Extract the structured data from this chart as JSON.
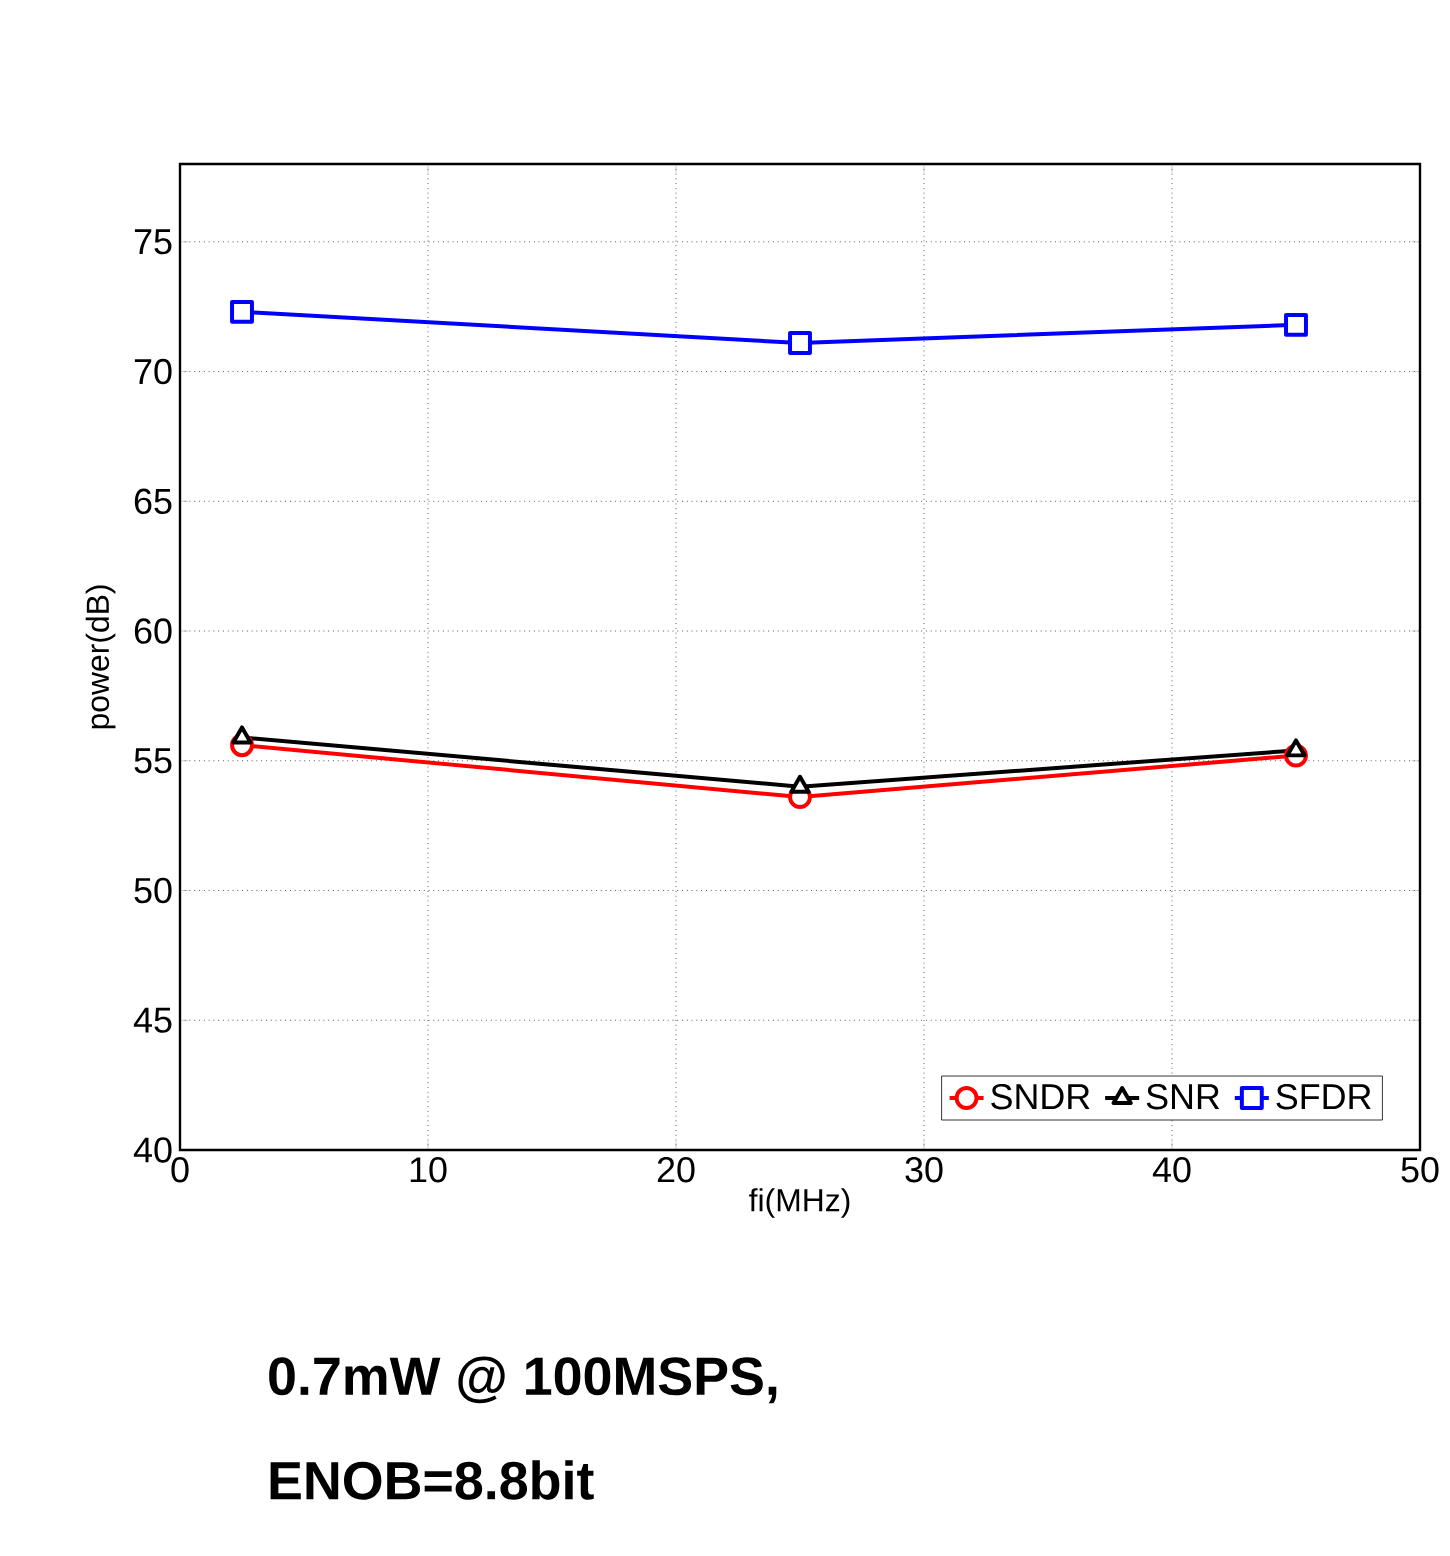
{
  "chart_data": {
    "type": "line",
    "xlabel": "fi(MHz)",
    "ylabel": "power(dB)",
    "xlim": [
      0,
      50
    ],
    "xticks": [
      0,
      10,
      20,
      30,
      40,
      50
    ],
    "ylim": [
      40,
      78
    ],
    "yticks": [
      40,
      45,
      50,
      55,
      60,
      65,
      70,
      75
    ],
    "grid": true,
    "legend": "bottom right",
    "line_style": "solid",
    "series": [
      {
        "name": "SNDR",
        "color": "#ff0000",
        "marker": "circle",
        "x": [
          2.5,
          25,
          45
        ],
        "values": [
          55.6,
          53.6,
          55.2
        ]
      },
      {
        "name": "SNR",
        "color": "#000000",
        "marker": "triangle",
        "x": [
          2.5,
          25,
          45
        ],
        "values": [
          55.9,
          54.0,
          55.4
        ]
      },
      {
        "name": "SFDR",
        "color": "#0000ff",
        "marker": "square",
        "x": [
          2.5,
          25,
          45
        ],
        "values": [
          72.3,
          71.1,
          71.8
        ]
      }
    ],
    "annotations": [
      "0.7mW @ 100MSPS,",
      "ENOB=8.8bit"
    ]
  }
}
